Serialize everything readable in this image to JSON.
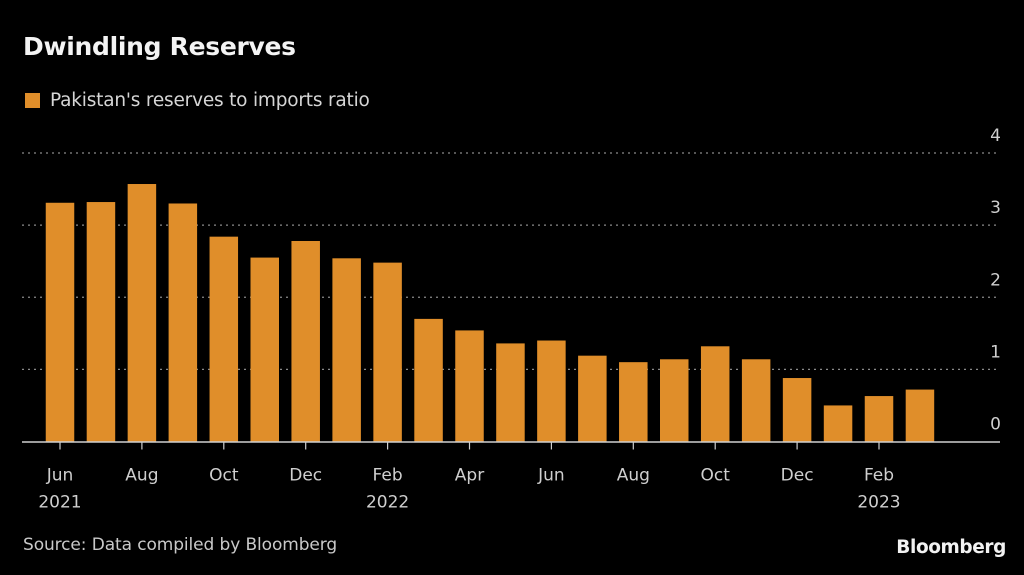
{
  "title": "Dwindling Reserves",
  "legend": {
    "label": "Pakistan's reserves to imports ratio",
    "color": "#e08e2a"
  },
  "source": "Source: Data compiled by Bloomberg",
  "brand": "Bloomberg",
  "colors": {
    "background": "#000000",
    "bar": "#e08e2a",
    "grid": "#8a8a8a",
    "axis": "#cfcfcf"
  },
  "chart_data": {
    "type": "bar",
    "title": "Dwindling Reserves",
    "xlabel": "",
    "ylabel": "",
    "ylim": [
      0,
      4
    ],
    "yticks": [
      0,
      1,
      2,
      3,
      4
    ],
    "grid": true,
    "y_axis_side": "right",
    "legend_position": "top-left",
    "categories": [
      "Jun 2021",
      "Jul 2021",
      "Aug 2021",
      "Sep 2021",
      "Oct 2021",
      "Nov 2021",
      "Dec 2021",
      "Jan 2022",
      "Feb 2022",
      "Mar 2022",
      "Apr 2022",
      "May 2022",
      "Jun 2022",
      "Jul 2022",
      "Aug 2022",
      "Sep 2022",
      "Oct 2022",
      "Nov 2022",
      "Dec 2022",
      "Jan 2023",
      "Feb 2023",
      "Mar 2023"
    ],
    "series": [
      {
        "name": "Pakistan's reserves to imports ratio",
        "values": [
          3.31,
          3.32,
          3.57,
          3.3,
          2.84,
          2.55,
          2.78,
          2.54,
          2.48,
          1.7,
          1.54,
          1.36,
          1.4,
          1.19,
          1.1,
          1.14,
          1.32,
          1.14,
          0.88,
          0.5,
          0.63,
          0.72
        ]
      }
    ],
    "xticks": [
      {
        "index": 0,
        "label": "Jun",
        "year": "2021"
      },
      {
        "index": 2,
        "label": "Aug",
        "year": ""
      },
      {
        "index": 4,
        "label": "Oct",
        "year": ""
      },
      {
        "index": 6,
        "label": "Dec",
        "year": ""
      },
      {
        "index": 8,
        "label": "Feb",
        "year": "2022"
      },
      {
        "index": 10,
        "label": "Apr",
        "year": ""
      },
      {
        "index": 12,
        "label": "Jun",
        "year": ""
      },
      {
        "index": 14,
        "label": "Aug",
        "year": ""
      },
      {
        "index": 16,
        "label": "Oct",
        "year": ""
      },
      {
        "index": 18,
        "label": "Dec",
        "year": ""
      },
      {
        "index": 20,
        "label": "Feb",
        "year": "2023"
      }
    ]
  }
}
